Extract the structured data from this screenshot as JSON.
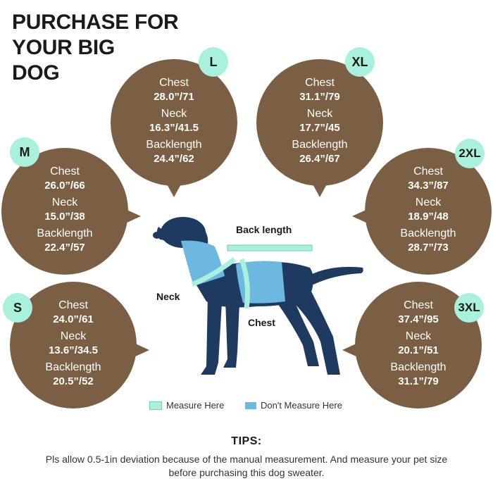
{
  "title_lines": [
    "PURCHASE FOR",
    "YOUR BIG",
    "DOG"
  ],
  "field_labels": {
    "chest": "Chest",
    "neck": "Neck",
    "back": "Backlength"
  },
  "sizes": [
    {
      "size": "L",
      "chest": "28.0”/71",
      "neck": "16.3”/41.5",
      "back": "24.4”/62"
    },
    {
      "size": "XL",
      "chest": "31.1”/79",
      "neck": "17.7”/45",
      "back": "26.4”/67"
    },
    {
      "size": "M",
      "chest": "26.0”/66",
      "neck": "15.0”/38",
      "back": "22.4”/57"
    },
    {
      "size": "2XL",
      "chest": "34.3”/87",
      "neck": "18.9”/48",
      "back": "28.7”/73"
    },
    {
      "size": "S",
      "chest": "24.0”/61",
      "neck": "13.6”/34.5",
      "back": "20.5”/52"
    },
    {
      "size": "3XL",
      "chest": "37.4”/95",
      "neck": "20.1”/51",
      "back": "31.1”/79"
    }
  ],
  "dog_labels": {
    "back_length": "Back length",
    "neck": "Neck",
    "chest": "Chest"
  },
  "legend": {
    "measure": "Measure Here",
    "dont_measure": "Don't Measure Here"
  },
  "colors": {
    "bubble": "#7b5f44",
    "badge": "#a9f1dc",
    "dog_body": "#1f3a5f",
    "sweater": "#6cb8e0",
    "tape": "#a9f1dc"
  },
  "tips": {
    "heading": "TIPS:",
    "text": "Pls allow 0.5-1in deviation because of the manual measurement. And measure your pet size before purchasing this dog sweater."
  }
}
